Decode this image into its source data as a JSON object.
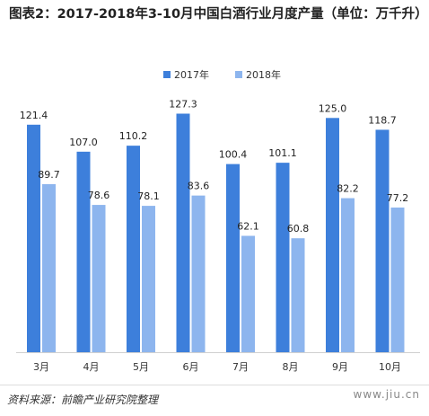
{
  "title": "图表2：2017-2018年3-10月中国白酒行业月度产量（单位：万千升）",
  "source": "资料来源：前瞻产业研究院整理",
  "website": "www.jiu.cn",
  "chart_data": {
    "type": "bar",
    "categories": [
      "3月",
      "4月",
      "5月",
      "6月",
      "7月",
      "8月",
      "9月",
      "10月"
    ],
    "series": [
      {
        "name": "2017年",
        "color": "#3d7fdb",
        "values": [
          121.4,
          107.0,
          110.2,
          127.3,
          100.4,
          101.1,
          125.0,
          118.7
        ]
      },
      {
        "name": "2018年",
        "color": "#8db5ee",
        "values": [
          89.7,
          78.6,
          78.1,
          83.6,
          62.1,
          60.8,
          82.2,
          77.2
        ]
      }
    ],
    "ylim": [
      0,
      140
    ],
    "legend_position": "top",
    "grid": false
  }
}
